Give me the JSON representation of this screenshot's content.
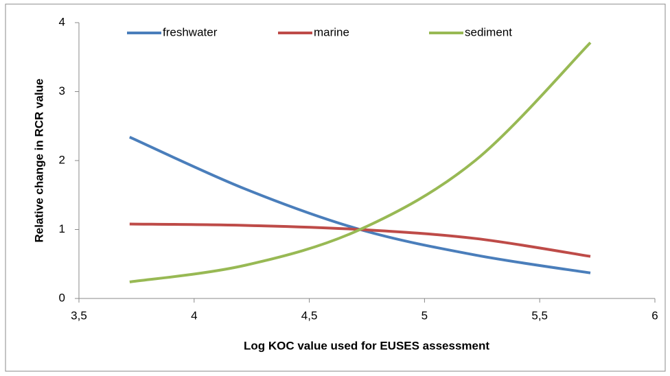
{
  "chart_data": {
    "type": "line",
    "x_label": "Log KOC value used for EUSES assessment",
    "y_label": "Relative change in RCR value",
    "x": [
      3.72,
      4.22,
      4.72,
      5.22,
      5.72
    ],
    "series": [
      {
        "name": "freshwater",
        "color": "#4a7ebb",
        "values": [
          2.34,
          1.59,
          1.0,
          0.63,
          0.37
        ]
      },
      {
        "name": "marine",
        "color": "#be4b48",
        "values": [
          1.08,
          1.06,
          1.0,
          0.87,
          0.61
        ]
      },
      {
        "name": "sediment",
        "color": "#98b954",
        "values": [
          0.24,
          0.48,
          1.0,
          2.0,
          3.71
        ]
      }
    ],
    "xlim": [
      3.5,
      6
    ],
    "xticks": [
      {
        "value": 3.5,
        "label": "3,5"
      },
      4,
      {
        "value": 4.5,
        "label": "4,5"
      },
      5,
      {
        "value": 5.5,
        "label": "5,5"
      },
      6
    ],
    "ylim": [
      0,
      4
    ],
    "yticks": [
      0,
      1,
      2,
      3,
      4
    ],
    "legend": "top",
    "smooth": true
  }
}
